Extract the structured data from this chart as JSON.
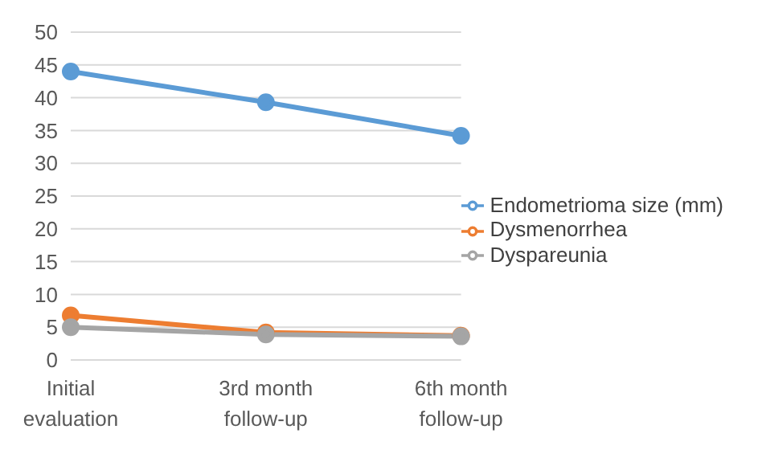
{
  "chart_data": {
    "type": "line",
    "categories": [
      "Initial evaluation",
      "3rd month follow-up",
      "6th month follow-up"
    ],
    "series": [
      {
        "name": "Endometrioma size (mm)",
        "color": "#5b9bd5",
        "values": [
          44,
          39.3,
          34.2
        ]
      },
      {
        "name": "Dysmenorrhea",
        "color": "#ed7d31",
        "values": [
          6.8,
          4.2,
          3.7
        ]
      },
      {
        "name": "Dyspareunia",
        "color": "#a5a5a5",
        "values": [
          5,
          3.9,
          3.6
        ]
      }
    ],
    "ylim": [
      0,
      50
    ],
    "yticks": [
      0,
      5,
      10,
      15,
      20,
      25,
      30,
      35,
      40,
      45,
      50
    ],
    "grid": "y",
    "legend": "right",
    "marker": "circle"
  }
}
